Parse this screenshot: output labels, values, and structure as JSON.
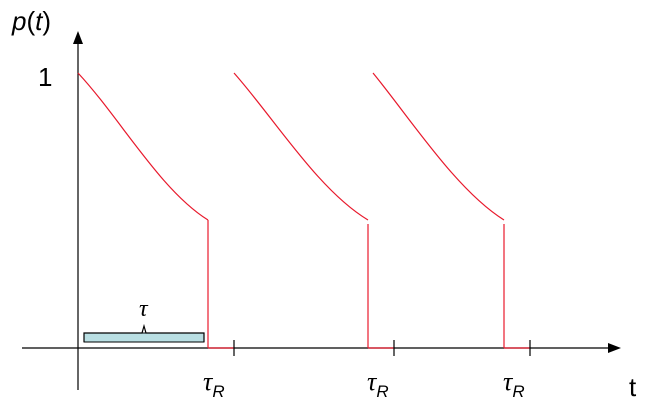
{
  "y_axis": {
    "title_var": "p",
    "title_open": "(",
    "title_arg": "t",
    "title_close": ")",
    "max_label": "1"
  },
  "x_axis": {
    "title": "t"
  },
  "interval_label": "τ",
  "reset_label": {
    "symbol": "τ",
    "subscript": "R"
  },
  "colors": {
    "curve": "#e8192c",
    "brace": "#b9dfe3",
    "axis": "#000000"
  }
}
